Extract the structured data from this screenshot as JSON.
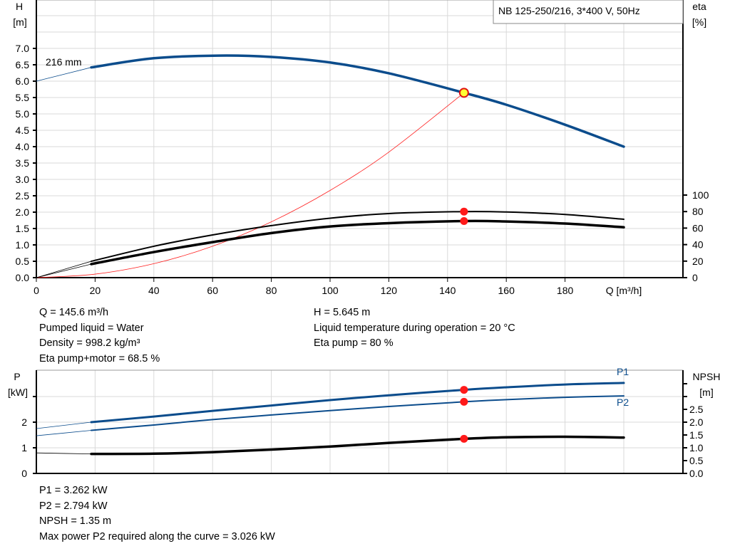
{
  "chart_data": [
    {
      "type": "line",
      "title": "NB 125-250/216, 3*400 V, 50Hz",
      "xlabel": "Q [m³/h]",
      "ylabel_left": [
        "H",
        "[m]"
      ],
      "ylabel_right": [
        "eta",
        "[%]"
      ],
      "xlim": [
        0,
        220
      ],
      "ylim_left": [
        0,
        8.5
      ],
      "ylim_right": [
        0,
        100
      ],
      "grid": true,
      "x_ticks": [
        "0",
        "20",
        "40",
        "60",
        "80",
        "100",
        "120",
        "140",
        "160",
        "180"
      ],
      "y_ticks_left": [
        "0.0",
        "0.5",
        "1.0",
        "1.5",
        "2.0",
        "2.5",
        "3.0",
        "3.5",
        "4.0",
        "4.5",
        "5.0",
        "5.5",
        "6.0",
        "6.5",
        "7.0"
      ],
      "y_ticks_right": [
        "0",
        "20",
        "40",
        "60",
        "80",
        "100"
      ],
      "annotation": "216 mm",
      "series": [
        {
          "name": "216 mm",
          "axis": "left",
          "color": "#0b4c8c",
          "thick_from": 18.7,
          "x": [
            0,
            18.7,
            40,
            62,
            80,
            100,
            120,
            145.6,
            160,
            180,
            200
          ],
          "y": [
            6.0,
            6.42,
            6.7,
            6.78,
            6.74,
            6.57,
            6.24,
            5.645,
            5.28,
            4.67,
            4.0
          ]
        },
        {
          "axis": "right",
          "color": "#000000",
          "thick_from": 18.7,
          "width": 2,
          "x": [
            0,
            18.7,
            40,
            60,
            80,
            100,
            120,
            145.6,
            160,
            180,
            200
          ],
          "y": [
            0,
            19.8,
            38,
            51.7,
            63,
            72,
            77.6,
            80,
            79.5,
            76.5,
            70.7
          ]
        },
        {
          "axis": "right",
          "color": "#000000",
          "thick_from": 18.7,
          "width": 3.5,
          "x": [
            0,
            18.7,
            40,
            60,
            80,
            100,
            120,
            145.6,
            160,
            180,
            200
          ],
          "y": [
            0,
            16.4,
            31,
            43,
            54,
            62,
            66,
            68.5,
            68,
            65.5,
            61
          ]
        },
        {
          "axis": "left",
          "color": "#ff2020",
          "kind": "system-curve",
          "x": [
            0,
            20,
            40,
            60,
            80,
            100,
            120,
            145.6
          ],
          "y": [
            0,
            0.107,
            0.426,
            0.959,
            1.704,
            2.663,
            3.834,
            5.645
          ]
        }
      ],
      "operating_point": {
        "q": 145.6,
        "h": 5.645,
        "eta_pump": 80,
        "eta_total": 68.5
      }
    },
    {
      "type": "line",
      "ylabel_left": [
        "P",
        "[kW]"
      ],
      "ylabel_right": [
        "NPSH",
        "[m]"
      ],
      "xlim": [
        0,
        220
      ],
      "ylim_left": [
        0,
        4.03
      ],
      "ylim_right": [
        0,
        4.03
      ],
      "grid": true,
      "y_ticks_left": [
        "0",
        "1",
        "2"
      ],
      "y_ticks_right": [
        "0.0",
        "0.5",
        "1.0",
        "1.5",
        "2.0",
        "2.5"
      ],
      "series": [
        {
          "name": "P1",
          "axis": "left",
          "color": "#0b4c8c",
          "thick_from": 18.7,
          "width": 3,
          "x": [
            0,
            18.7,
            40,
            60,
            80,
            100,
            120,
            145.6,
            160,
            180,
            200
          ],
          "y": [
            1.75,
            2.0,
            2.22,
            2.44,
            2.65,
            2.86,
            3.05,
            3.262,
            3.36,
            3.47,
            3.53
          ]
        },
        {
          "name": "P2",
          "axis": "left",
          "color": "#0b4c8c",
          "thick_from": 18.7,
          "width": 2,
          "x": [
            0,
            18.7,
            40,
            60,
            80,
            100,
            120,
            145.6,
            160,
            180,
            200
          ],
          "y": [
            1.47,
            1.68,
            1.89,
            2.1,
            2.28,
            2.45,
            2.61,
            2.794,
            2.88,
            2.97,
            3.026
          ]
        },
        {
          "name": "NPSH",
          "axis": "right",
          "color": "#000000",
          "thick_from": 18.7,
          "width": 3.5,
          "x": [
            0,
            18.7,
            40,
            60,
            80,
            100,
            120,
            145.6,
            160,
            180,
            200
          ],
          "y": [
            0.8,
            0.76,
            0.77,
            0.83,
            0.93,
            1.05,
            1.19,
            1.35,
            1.41,
            1.43,
            1.4
          ]
        }
      ],
      "operating_point": {
        "q": 145.6,
        "p1": 3.262,
        "p2": 2.794,
        "npsh": 1.35
      }
    }
  ],
  "info_top_left": [
    "Q = 145.6 m³/h",
    "Pumped liquid = Water",
    "Density = 998.2 kg/m³",
    "Eta pump+motor = 68.5 %"
  ],
  "info_top_right": [
    "H = 5.645 m",
    "Liquid temperature during operation = 20 °C",
    "Eta pump = 80 %"
  ],
  "info_bottom": [
    "P1 = 3.262 kW",
    "P2 = 2.794 kW",
    "NPSH = 1.35 m",
    "Max power P2 required along the curve = 3.026 kW"
  ]
}
